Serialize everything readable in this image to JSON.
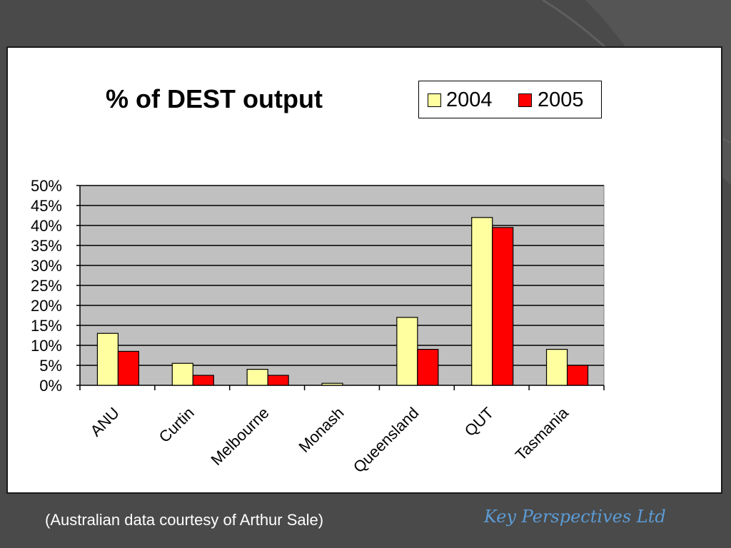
{
  "caption": "(Australian data courtesy of Arthur Sale)",
  "brand": "Key Perspectives Ltd",
  "colors": {
    "background": "#4a4a4a",
    "panel": "#ffffff",
    "plot_area": "#c0c0c0",
    "series_2004": "#ffffa0",
    "series_2005": "#ff0000",
    "brand_text": "#5b9bd5"
  },
  "chart_data": {
    "type": "bar",
    "title": "% of DEST output",
    "xlabel": "",
    "ylabel": "",
    "ylim": [
      0,
      50
    ],
    "y_ticks": [
      "0%",
      "5%",
      "10%",
      "15%",
      "20%",
      "25%",
      "30%",
      "35%",
      "40%",
      "45%",
      "50%"
    ],
    "categories": [
      "ANU",
      "Curtin",
      "Melbourne",
      "Monash",
      "Queensland",
      "QUT",
      "Tasmania"
    ],
    "series": [
      {
        "name": "2004",
        "values": [
          13,
          5.5,
          4,
          0.5,
          17,
          42,
          9
        ]
      },
      {
        "name": "2005",
        "values": [
          8.5,
          2.5,
          2.5,
          0,
          9,
          39.5,
          5
        ]
      }
    ],
    "grid": true,
    "legend": "top-right"
  }
}
